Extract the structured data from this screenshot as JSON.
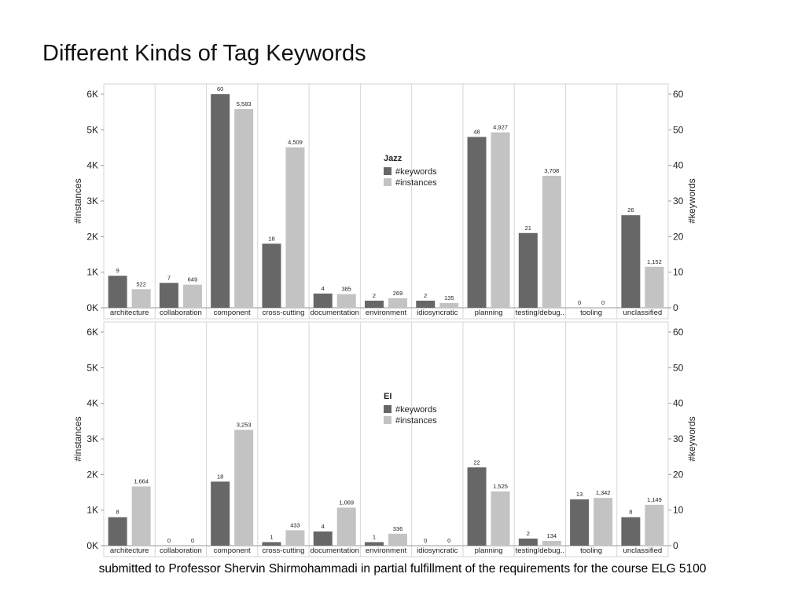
{
  "slide": {
    "title": "Different Kinds of Tag Keywords",
    "footer": "submitted to Professor Shervin Shirmohammadi in partial fulfillment of the requirements for the course ELG 5100"
  },
  "colors": {
    "keywords": "#676767",
    "instances": "#c3c3c3",
    "grid": "#d6d6d6",
    "axis": "#999999"
  },
  "chart_data": [
    {
      "type": "bar",
      "title": "",
      "legend_title": "Jazz",
      "legend_position": "center",
      "categories": [
        "architecture",
        "collaboration",
        "component",
        "cross-cutting",
        "documentation",
        "environment",
        "idiosyncratic",
        "planning",
        "testing/debug..",
        "tooling",
        "unclassified"
      ],
      "series": [
        {
          "name": "#keywords",
          "axis": "right",
          "values": [
            9,
            7,
            60,
            18,
            4,
            2,
            2,
            48,
            21,
            0,
            26
          ],
          "labels": [
            "9",
            "7",
            "60",
            "18",
            "4",
            "2",
            "2",
            "48",
            "21",
            "0",
            "26"
          ]
        },
        {
          "name": "#instances",
          "axis": "left",
          "values": [
            522,
            649,
            5583,
            4509,
            385,
            269,
            135,
            4927,
            3708,
            0,
            1152
          ],
          "labels": [
            "522",
            "649",
            "5,583",
            "4,509",
            "385",
            "269",
            "135",
            "4,927",
            "3,708",
            "0",
            "1,152"
          ]
        }
      ],
      "ylabel": "#instances",
      "ylim": [
        0,
        6000
      ],
      "yticks": [
        "0K",
        "1K",
        "2K",
        "3K",
        "4K",
        "5K",
        "6K"
      ],
      "y2label": "#keywords",
      "y2lim": [
        0,
        60
      ],
      "y2ticks": [
        "0",
        "10",
        "20",
        "30",
        "40",
        "50",
        "60"
      ]
    },
    {
      "type": "bar",
      "title": "",
      "legend_title": "EI",
      "legend_position": "center",
      "categories": [
        "architecture",
        "collaboration",
        "component",
        "cross-cutting",
        "documentation",
        "environment",
        "idiosyncratic",
        "planning",
        "testing/debug..",
        "tooling",
        "unclassified"
      ],
      "series": [
        {
          "name": "#keywords",
          "axis": "right",
          "values": [
            8,
            0,
            18,
            1,
            4,
            1,
            0,
            22,
            2,
            13,
            8
          ],
          "labels": [
            "8",
            "0",
            "18",
            "1",
            "4",
            "1",
            "0",
            "22",
            "2",
            "13",
            "8"
          ]
        },
        {
          "name": "#instances",
          "axis": "left",
          "values": [
            1664,
            0,
            3253,
            433,
            1069,
            336,
            0,
            1525,
            134,
            1342,
            1149
          ],
          "labels": [
            "1,664",
            "0",
            "3,253",
            "433",
            "1,069",
            "336",
            "0",
            "1,525",
            "134",
            "1,342",
            "1,149"
          ]
        }
      ],
      "ylabel": "#instances",
      "ylim": [
        0,
        6000
      ],
      "yticks": [
        "0K",
        "1K",
        "2K",
        "3K",
        "4K",
        "5K",
        "6K"
      ],
      "y2label": "#keywords",
      "y2lim": [
        0,
        60
      ],
      "y2ticks": [
        "0",
        "10",
        "20",
        "30",
        "40",
        "50",
        "60"
      ]
    }
  ]
}
